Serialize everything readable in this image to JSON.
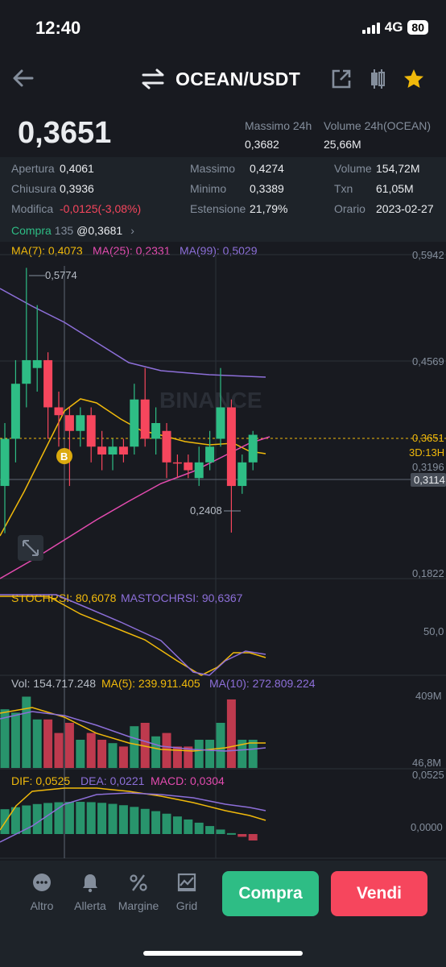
{
  "status": {
    "time": "12:40",
    "network": "4G",
    "battery": "80"
  },
  "header": {
    "pair": "OCEAN/USDT"
  },
  "price": "0,3651",
  "summary24h": {
    "high_label": "Massimo 24h",
    "high_value": "0,3682",
    "volume_label": "Volume 24h(OCEAN)",
    "volume_value": "25,66M"
  },
  "stats": {
    "open_label": "Apertura",
    "open_value": "0,4061",
    "close_label": "Chiusura",
    "close_value": "0,3936",
    "change_label": "Modifica",
    "change_value": "-0,0125(-3,08%)",
    "max_label": "Massimo",
    "max_value": "0,4274",
    "min_label": "Minimo",
    "min_value": "0,3389",
    "range_label": "Estensione",
    "range_value": "21,79%",
    "vol_label": "Volume",
    "vol_value": "154,72M",
    "txn_label": "Txn",
    "txn_value": "61,05M",
    "time_label": "Orario",
    "time_value": "2023-02-27",
    "buy_label": "Compra",
    "buy_count": "135",
    "buy_price": "@0,3681"
  },
  "ma": {
    "ma7": "MA(7): 0,4073",
    "ma25": "MA(25): 0,2331",
    "ma99": "MA(99): 0,5029"
  },
  "chart": {
    "watermark": "BINANCE",
    "axis": [
      "0,5942",
      "0,4569",
      "0,1822"
    ],
    "last_price": "0,3651",
    "countdown": "3D:13H",
    "level_a": "0,3196",
    "level_b": "0,3114",
    "high_marker": "0,5774",
    "low_marker": "0,2408",
    "buy_marker": "B"
  },
  "stoch": {
    "stoch_label": "STOCHRSI: 80,6078",
    "mastoch_label": "MASTOCHRSI: 90,6367",
    "axis_mid": "50,0"
  },
  "volume": {
    "vol_label": "Vol: 154.717.248",
    "ma5_label": "MA(5): 239.911.405",
    "ma10_label": "MA(10): 272.809.224",
    "axis_top": "409M",
    "axis_bottom": "46,8M"
  },
  "macd": {
    "dif_label": "DIF: 0,0525",
    "dea_label": "DEA: 0,0221",
    "macd_label": "MACD: 0,0304",
    "axis_top": "0,0525",
    "axis_zero": "0,0000"
  },
  "toolbar": {
    "altro": "Altro",
    "allerta": "Allerta",
    "margine": "Margine",
    "grid": "Grid",
    "buy": "Compra",
    "sell": "Vendi"
  },
  "colors": {
    "up": "#2EBD85",
    "down": "#F6465D",
    "accent": "#F0B90B",
    "bg": "#181A20"
  },
  "chart_data": {
    "type": "candlestick",
    "note_symbol": "OCEAN/USDT",
    "ylim": [
      0.1822,
      0.5942
    ],
    "candles": [
      {
        "o": 0.3,
        "c": 0.36,
        "h": 0.38,
        "l": 0.24,
        "dir": "up"
      },
      {
        "o": 0.36,
        "c": 0.43,
        "h": 0.46,
        "l": 0.33,
        "dir": "up"
      },
      {
        "o": 0.43,
        "c": 0.46,
        "h": 0.5774,
        "l": 0.4,
        "dir": "up"
      },
      {
        "o": 0.45,
        "c": 0.46,
        "h": 0.53,
        "l": 0.42,
        "dir": "up"
      },
      {
        "o": 0.46,
        "c": 0.4,
        "h": 0.47,
        "l": 0.36,
        "dir": "down"
      },
      {
        "o": 0.4,
        "c": 0.39,
        "h": 0.42,
        "l": 0.35,
        "dir": "down"
      },
      {
        "o": 0.39,
        "c": 0.37,
        "h": 0.4,
        "l": 0.3,
        "dir": "down"
      },
      {
        "o": 0.37,
        "c": 0.39,
        "h": 0.4,
        "l": 0.35,
        "dir": "up"
      },
      {
        "o": 0.39,
        "c": 0.35,
        "h": 0.4,
        "l": 0.33,
        "dir": "down"
      },
      {
        "o": 0.35,
        "c": 0.34,
        "h": 0.37,
        "l": 0.32,
        "dir": "down"
      },
      {
        "o": 0.34,
        "c": 0.35,
        "h": 0.36,
        "l": 0.32,
        "dir": "up"
      },
      {
        "o": 0.35,
        "c": 0.34,
        "h": 0.36,
        "l": 0.33,
        "dir": "down"
      },
      {
        "o": 0.35,
        "c": 0.41,
        "h": 0.43,
        "l": 0.34,
        "dir": "up"
      },
      {
        "o": 0.41,
        "c": 0.36,
        "h": 0.45,
        "l": 0.35,
        "dir": "down"
      },
      {
        "o": 0.36,
        "c": 0.38,
        "h": 0.4,
        "l": 0.34,
        "dir": "up"
      },
      {
        "o": 0.37,
        "c": 0.33,
        "h": 0.38,
        "l": 0.31,
        "dir": "down"
      },
      {
        "o": 0.33,
        "c": 0.33,
        "h": 0.34,
        "l": 0.31,
        "dir": "down"
      },
      {
        "o": 0.33,
        "c": 0.32,
        "h": 0.34,
        "l": 0.31,
        "dir": "down"
      },
      {
        "o": 0.31,
        "c": 0.33,
        "h": 0.35,
        "l": 0.3,
        "dir": "up"
      },
      {
        "o": 0.33,
        "c": 0.35,
        "h": 0.37,
        "l": 0.32,
        "dir": "up"
      },
      {
        "o": 0.36,
        "c": 0.4,
        "h": 0.45,
        "l": 0.35,
        "dir": "up"
      },
      {
        "o": 0.4,
        "c": 0.3,
        "h": 0.41,
        "l": 0.2408,
        "dir": "down"
      },
      {
        "o": 0.3,
        "c": 0.33,
        "h": 0.34,
        "l": 0.29,
        "dir": "up"
      },
      {
        "o": 0.33,
        "c": 0.3651,
        "h": 0.37,
        "l": 0.32,
        "dir": "up"
      }
    ]
  }
}
